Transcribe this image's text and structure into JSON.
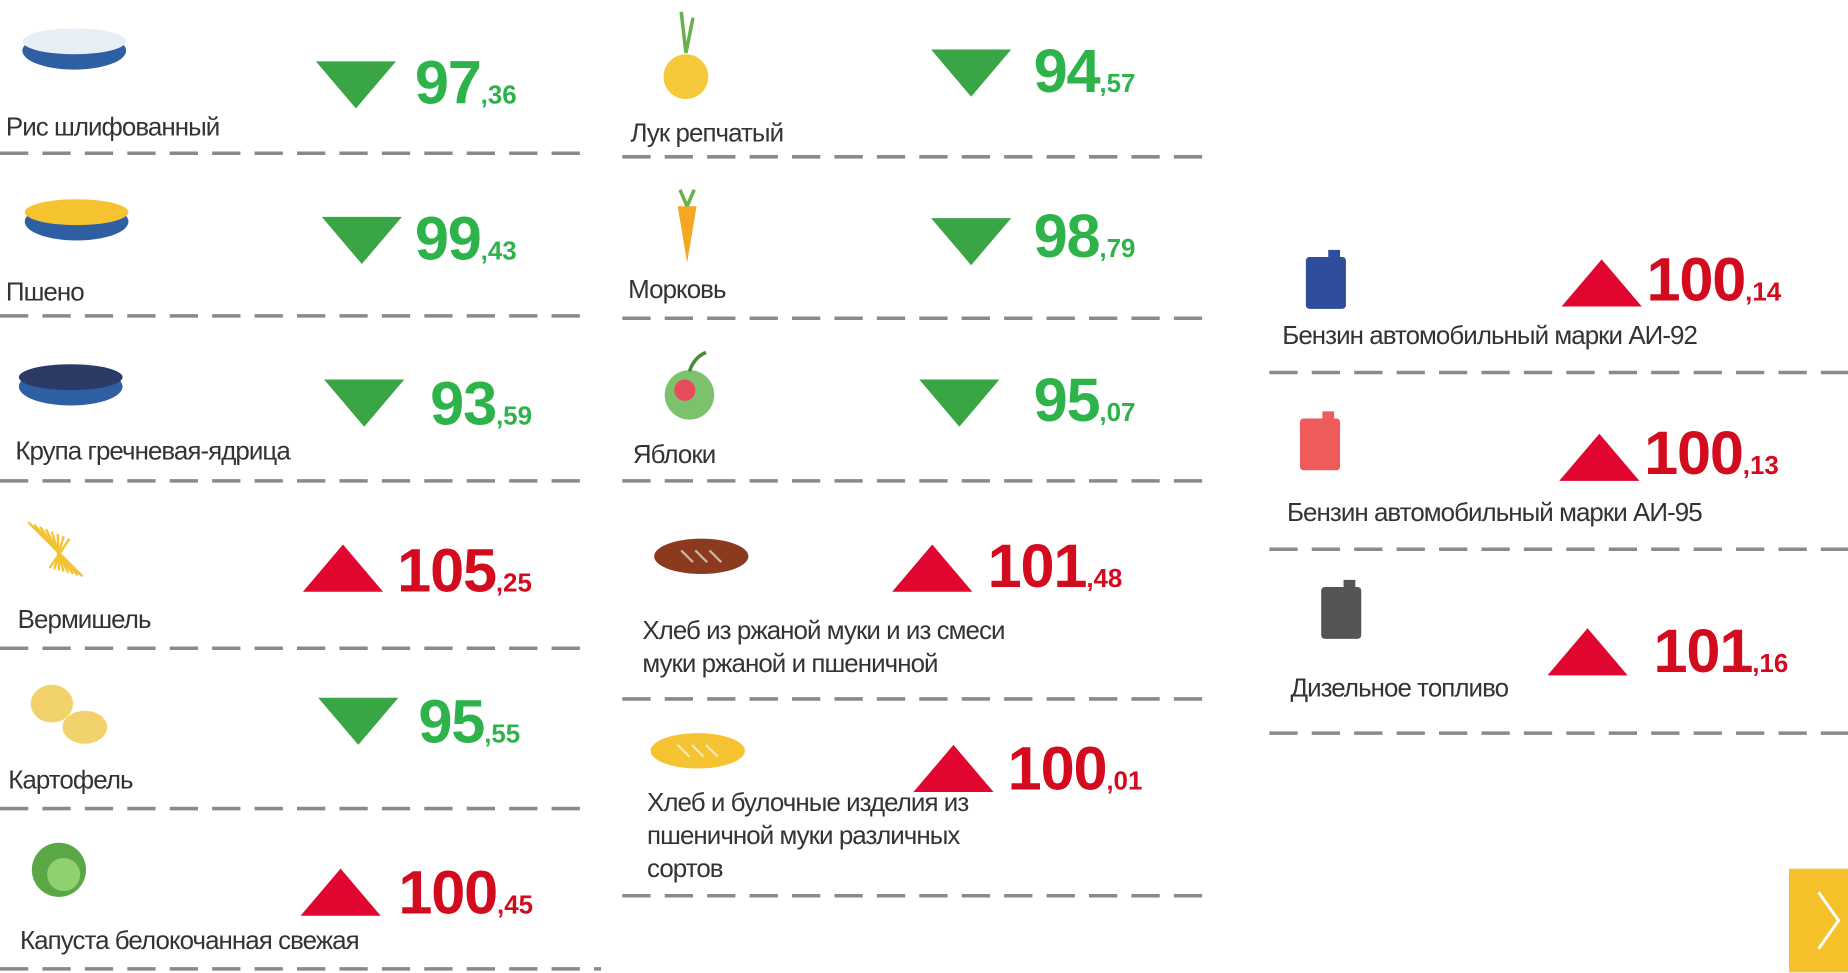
{
  "columns": [
    {
      "items": [
        {
          "name": [
            "Рис шлифованный"
          ],
          "int": "97",
          "frac": ",36",
          "trend": "down"
        },
        {
          "name": [
            "Пшено"
          ],
          "int": "99",
          "frac": ",43",
          "trend": "down"
        },
        {
          "name": [
            "Крупа гречневая-ядрица"
          ],
          "int": "93",
          "frac": ",59",
          "trend": "down"
        },
        {
          "name": [
            "Вермишель"
          ],
          "int": "105",
          "frac": ",25",
          "trend": "up"
        },
        {
          "name": [
            "Картофель"
          ],
          "int": "95",
          "frac": ",55",
          "trend": "down"
        },
        {
          "name": [
            "Капуста белокочанная свежая"
          ],
          "int": "100",
          "frac": ",45",
          "trend": "up"
        }
      ]
    },
    {
      "items": [
        {
          "name": [
            "Лук репчатый"
          ],
          "int": "94",
          "frac": ",57",
          "trend": "down"
        },
        {
          "name": [
            "Морковь"
          ],
          "int": "98",
          "frac": ",79",
          "trend": "down"
        },
        {
          "name": [
            "Яблоки"
          ],
          "int": "95",
          "frac": ",07",
          "trend": "down"
        },
        {
          "name": [
            "Хлеб из ржаной муки и из смеси",
            "муки ржаной и пшеничной"
          ],
          "int": "101",
          "frac": ",48",
          "trend": "up"
        },
        {
          "name": [
            "Хлеб и булочные изделия из",
            "пшеничной муки различных",
            "сортов"
          ],
          "int": "100",
          "frac": ",01",
          "trend": "up"
        }
      ]
    },
    {
      "items": [
        {
          "name": [
            "Бензин автомобильный марки АИ-92"
          ],
          "int": "100",
          "frac": ",14",
          "trend": "up"
        },
        {
          "name": [
            "Бензин автомобильный марки АИ-95"
          ],
          "int": "100",
          "frac": ",13",
          "trend": "up"
        },
        {
          "name": [
            "Дизельное топливо"
          ],
          "int": "101",
          "frac": ",16",
          "trend": "up"
        }
      ]
    }
  ]
}
